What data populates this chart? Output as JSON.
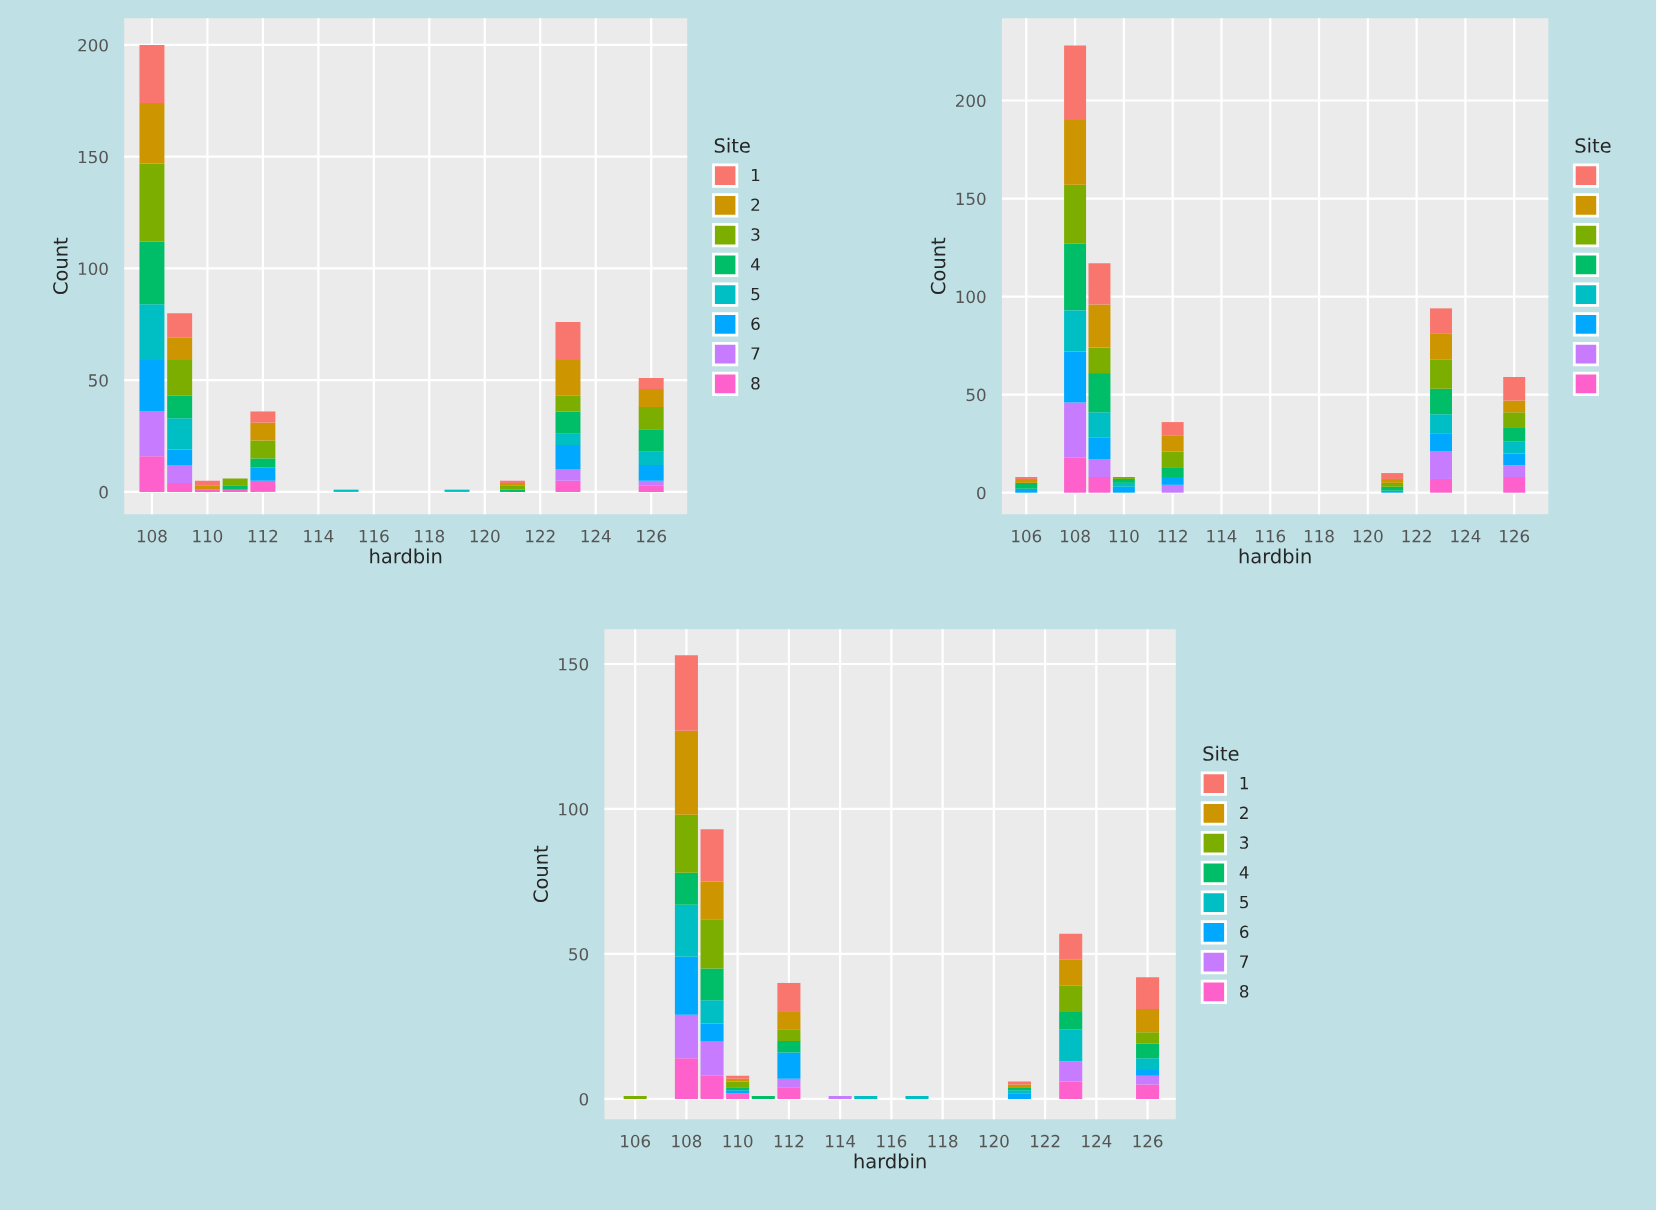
{
  "chart_data": [
    {
      "type": "bar",
      "stacked": true,
      "xlabel": "hardbin",
      "ylabel": "Count",
      "legend_title": "Site",
      "legend": "right",
      "grid": true,
      "x": [
        108,
        109,
        110,
        111,
        112,
        115,
        119,
        121,
        123,
        126
      ],
      "xlim": [
        107,
        127.3
      ],
      "xticks": [
        108,
        110,
        112,
        114,
        116,
        118,
        120,
        122,
        124,
        126
      ],
      "ylim": [
        -10,
        212
      ],
      "yticks": [
        0,
        50,
        100,
        150,
        200
      ],
      "series": [
        {
          "name": "8",
          "color": "#ff61cc",
          "values": [
            16,
            4,
            1,
            1,
            5,
            null,
            null,
            null,
            5,
            3
          ]
        },
        {
          "name": "7",
          "color": "#c77cff",
          "values": [
            20,
            8,
            null,
            null,
            null,
            null,
            null,
            null,
            5,
            2
          ]
        },
        {
          "name": "6",
          "color": "#00a9ff",
          "values": [
            23,
            7,
            null,
            null,
            6,
            null,
            null,
            null,
            11,
            7
          ]
        },
        {
          "name": "5",
          "color": "#00bfc4",
          "values": [
            25,
            14,
            null,
            null,
            null,
            1,
            1,
            null,
            5,
            6
          ]
        },
        {
          "name": "4",
          "color": "#00be67",
          "values": [
            28,
            10,
            null,
            2,
            4,
            null,
            null,
            1,
            10,
            10
          ]
        },
        {
          "name": "3",
          "color": "#7cae00",
          "values": [
            35,
            16,
            null,
            3,
            8,
            null,
            null,
            2,
            7,
            10
          ]
        },
        {
          "name": "2",
          "color": "#cd9600",
          "values": [
            27,
            10,
            2,
            null,
            8,
            null,
            null,
            1,
            16,
            8
          ]
        },
        {
          "name": "1",
          "color": "#f8766d",
          "values": [
            26,
            11,
            2,
            null,
            5,
            null,
            null,
            1,
            17,
            5
          ]
        }
      ]
    },
    {
      "type": "bar",
      "stacked": true,
      "xlabel": "hardbin",
      "ylabel": "Count",
      "legend_title": "Site",
      "legend": "right",
      "grid": true,
      "x": [
        106,
        108,
        109,
        110,
        112,
        121,
        123,
        126
      ],
      "xlim": [
        105,
        127.4
      ],
      "xticks": [
        106,
        108,
        110,
        112,
        114,
        116,
        118,
        120,
        122,
        124,
        126
      ],
      "ylim": [
        -11,
        242
      ],
      "yticks": [
        0,
        50,
        100,
        150,
        200
      ],
      "series": [
        {
          "color": "#ff61cc",
          "values": [
            null,
            18,
            8,
            null,
            null,
            null,
            7,
            8
          ]
        },
        {
          "color": "#c77cff",
          "values": [
            null,
            28,
            9,
            null,
            4,
            null,
            14,
            6
          ]
        },
        {
          "color": "#00a9ff",
          "values": [
            2,
            26,
            11,
            3,
            4,
            1,
            9,
            6
          ]
        },
        {
          "color": "#00bfc4",
          "values": [
            null,
            21,
            13,
            2,
            null,
            null,
            10,
            6
          ]
        },
        {
          "color": "#00be67",
          "values": [
            3,
            34,
            20,
            2,
            5,
            2,
            13,
            7
          ]
        },
        {
          "color": "#7cae00",
          "values": [
            null,
            30,
            13,
            1,
            8,
            2,
            15,
            8
          ]
        },
        {
          "color": "#cd9600",
          "values": [
            2,
            33,
            22,
            null,
            8,
            2,
            13,
            6
          ]
        },
        {
          "color": "#f8766d",
          "values": [
            1,
            38,
            21,
            null,
            7,
            3,
            13,
            12
          ]
        }
      ]
    },
    {
      "type": "bar",
      "stacked": true,
      "xlabel": "hardbin",
      "ylabel": "Count",
      "legend_title": "Site",
      "legend": "right",
      "grid": true,
      "x": [
        106,
        108,
        109,
        110,
        111,
        112,
        114,
        115,
        117,
        121,
        123,
        126
      ],
      "xlim": [
        104.8,
        127.1
      ],
      "xticks": [
        106,
        108,
        110,
        112,
        114,
        116,
        118,
        120,
        122,
        124,
        126
      ],
      "ylim": [
        -7,
        162
      ],
      "yticks": [
        0,
        50,
        100,
        150
      ],
      "series": [
        {
          "name": "8",
          "color": "#ff61cc",
          "values": [
            null,
            14,
            8,
            2,
            null,
            4,
            null,
            null,
            null,
            null,
            6,
            5
          ]
        },
        {
          "name": "7",
          "color": "#c77cff",
          "values": [
            null,
            15,
            12,
            null,
            null,
            3,
            1,
            null,
            null,
            null,
            7,
            3
          ]
        },
        {
          "name": "6",
          "color": "#00a9ff",
          "values": [
            null,
            20,
            6,
            1,
            null,
            9,
            null,
            null,
            null,
            2,
            null,
            2
          ]
        },
        {
          "name": "5",
          "color": "#00bfc4",
          "values": [
            null,
            18,
            8,
            null,
            null,
            null,
            null,
            1,
            1,
            1,
            11,
            4
          ]
        },
        {
          "name": "4",
          "color": "#00be67",
          "values": [
            null,
            11,
            11,
            1,
            1,
            4,
            null,
            null,
            null,
            1,
            6,
            5
          ]
        },
        {
          "name": "3",
          "color": "#7cae00",
          "values": [
            1,
            20,
            17,
            2,
            null,
            4,
            null,
            null,
            null,
            null,
            9,
            4
          ]
        },
        {
          "name": "2",
          "color": "#cd9600",
          "values": [
            null,
            29,
            13,
            1,
            null,
            6,
            null,
            null,
            null,
            1,
            9,
            8
          ]
        },
        {
          "name": "1",
          "color": "#f8766d",
          "values": [
            null,
            26,
            18,
            1,
            null,
            10,
            null,
            null,
            null,
            1,
            9,
            11
          ]
        }
      ]
    }
  ]
}
